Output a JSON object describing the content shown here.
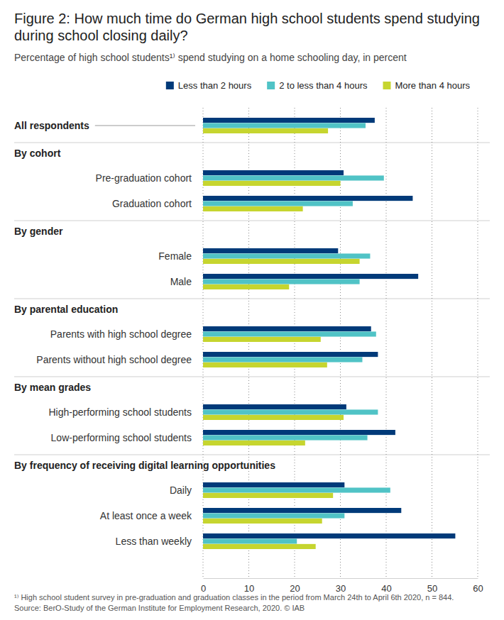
{
  "chart_data": {
    "type": "bar",
    "orientation": "horizontal",
    "title": "Figure 2: How much time do German high school students spend studying during school closing daily?",
    "subtitle": "Percentage of high school students¹⁾ spend studying on a home schooling day, in percent",
    "categories": [
      "All respondents",
      "Pre-graduation cohort",
      "Graduation cohort",
      "Female",
      "Male",
      "Parents with high school degree",
      "Parents without high school degree",
      "High-performing school students",
      "Low-performing school students",
      "Daily",
      "At least once a week",
      "Less than weekly"
    ],
    "category_groups": [
      null,
      "By cohort",
      "By cohort",
      "By gender",
      "By gender",
      "By parental education",
      "By parental education",
      "By mean grades",
      "By mean grades",
      "By frequency of receiving digital learning opportunities",
      "By frequency of receiving digital learning opportunities",
      "By frequency of receiving digital learning opportunities"
    ],
    "series": [
      {
        "name": "Less than 2 hours",
        "color": "#003a79",
        "values": [
          37.5,
          30.7,
          45.8,
          29.5,
          47.0,
          36.7,
          38.2,
          31.3,
          42.0,
          30.9,
          43.3,
          55.1
        ]
      },
      {
        "name": "2 to less than 4 hours",
        "color": "#50c3c6",
        "values": [
          35.5,
          39.5,
          32.7,
          36.5,
          34.2,
          37.8,
          34.8,
          38.2,
          35.9,
          40.9,
          30.9,
          20.5
        ]
      },
      {
        "name": "More than 4 hours",
        "color": "#c6d52f",
        "values": [
          27.3,
          30.0,
          21.8,
          34.2,
          18.8,
          25.7,
          27.1,
          30.7,
          22.3,
          28.4,
          26.0,
          24.6
        ]
      }
    ],
    "xlim": [
      0,
      60
    ],
    "xticks": [
      0,
      10,
      20,
      30,
      40,
      50,
      60
    ],
    "grid": true,
    "legend": "top-right",
    "notes": [
      "¹⁾ High school student survey in pre-graduation and graduation classes in the period from March 24th to April 6th 2020, n = 844.",
      "Source: BerO-Study of the German Institute for Employment Research, 2020. © IAB"
    ]
  }
}
